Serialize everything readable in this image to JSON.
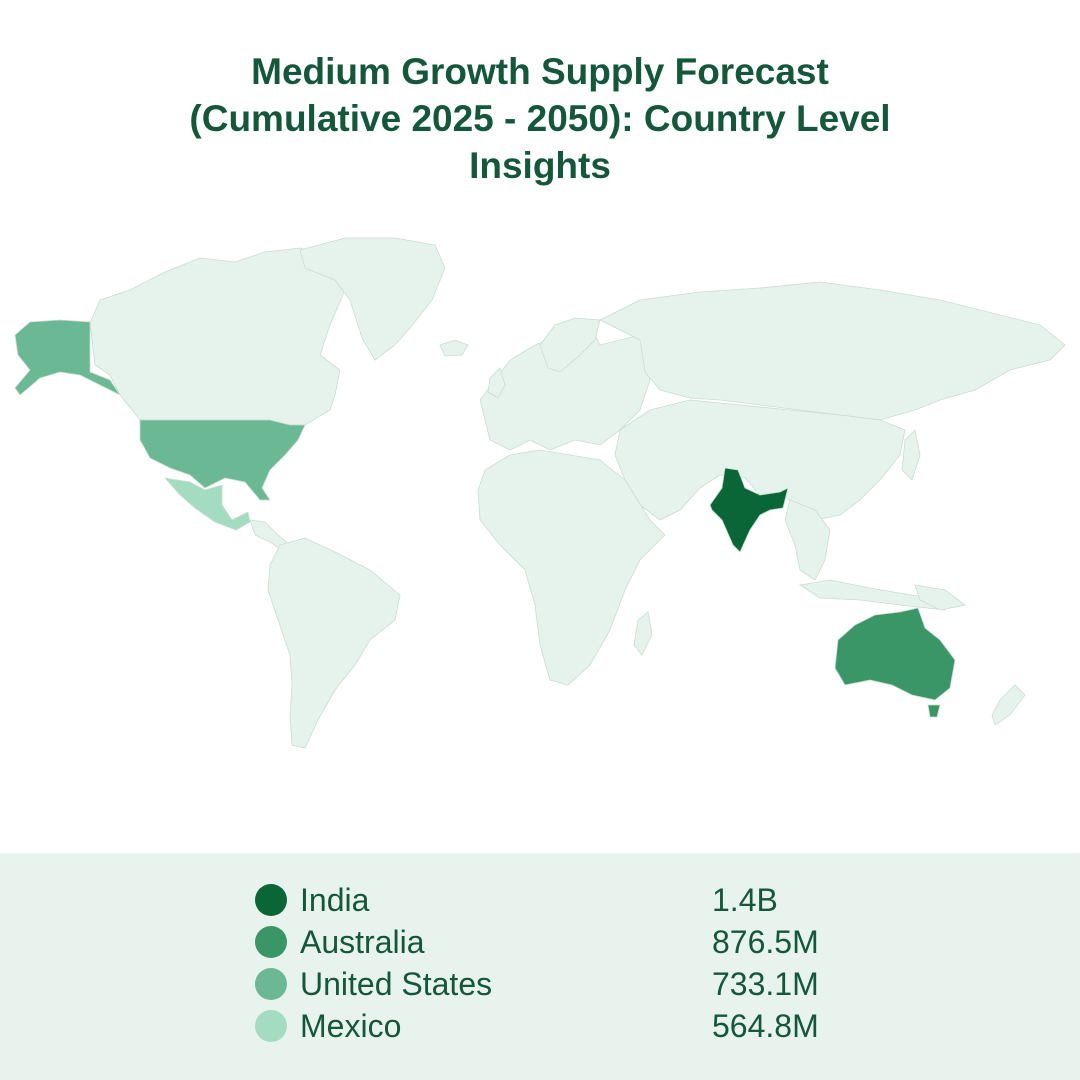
{
  "title_lines": [
    "Medium Growth Supply Forecast",
    "(Cumulative 2025 - 2050): Country Level",
    "Insights"
  ],
  "colors": {
    "title": "#14573a",
    "land_default": "#e6f3ec",
    "border": "#c9ddd2",
    "legend_bg": "#e7f3ec"
  },
  "legend": [
    {
      "country": "India",
      "value": "1.4B",
      "color": "#0b6637"
    },
    {
      "country": "Australia",
      "value": "876.5M",
      "color": "#3a9567"
    },
    {
      "country": "United States",
      "value": "733.1M",
      "color": "#6bb894"
    },
    {
      "country": "Mexico",
      "value": "564.8M",
      "color": "#a3dcc0"
    }
  ]
}
